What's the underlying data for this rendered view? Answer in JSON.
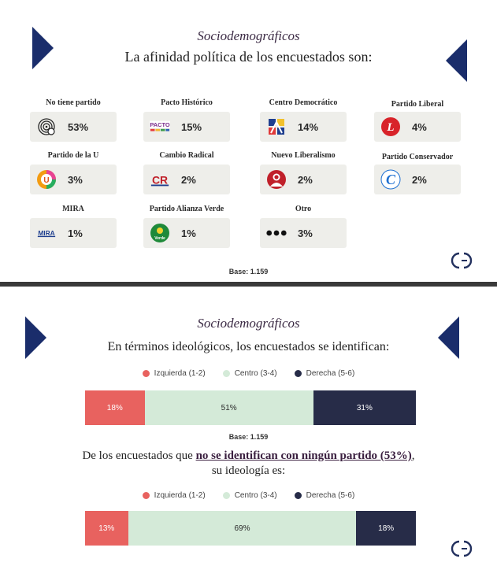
{
  "slide1": {
    "subtitle": "Sociodemográficos",
    "title": "La afinidad política de los encuestados son:",
    "parties": [
      {
        "name": "No tiene partido",
        "pct": "53%",
        "icon": "fingerprint-icon"
      },
      {
        "name": "Pacto Histórico",
        "pct": "15%",
        "icon": "pacto-historico-logo"
      },
      {
        "name": "Centro Democrático",
        "pct": "14%",
        "icon": "centro-democratico-logo"
      },
      {
        "name": "Partido Liberal",
        "pct": "4%",
        "icon": "partido-liberal-logo"
      },
      {
        "name": "Partido de la U",
        "pct": "3%",
        "icon": "partido-de-la-u-logo"
      },
      {
        "name": "Cambio Radical",
        "pct": "2%",
        "icon": "cambio-radical-logo"
      },
      {
        "name": "Nuevo Liberalismo",
        "pct": "2%",
        "icon": "nuevo-liberalismo-logo"
      },
      {
        "name": "Partido Conservador",
        "pct": "2%",
        "icon": "partido-conservador-logo"
      },
      {
        "name": "MIRA",
        "pct": "1%",
        "icon": "mira-logo"
      },
      {
        "name": "Partido Alianza Verde",
        "pct": "1%",
        "icon": "alianza-verde-logo"
      },
      {
        "name": "Otro",
        "pct": "3%",
        "icon": "three-dots-icon"
      }
    ],
    "logo_texts": {
      "pacto": "PACTO",
      "cambio": "CR",
      "mira": "MIRA",
      "verde": "Verde",
      "liberal": "L",
      "u": "U",
      "conservador": "C"
    },
    "base": "Base: 1.159"
  },
  "slide2": {
    "subtitle": "Sociodemográficos",
    "title": "En términos ideológicos, los encuestados se identifican:",
    "legend": [
      {
        "label": "Izquierda (1-2)",
        "color": "#e8625f"
      },
      {
        "label": "Centro (3-4)",
        "color": "#d4ead8"
      },
      {
        "label": "Derecha (5-6)",
        "color": "#272c48"
      }
    ],
    "bar1": [
      {
        "label": "18%",
        "value": 18
      },
      {
        "label": "51%",
        "value": 51
      },
      {
        "label": "31%",
        "value": 31
      }
    ],
    "base": "Base: 1.159",
    "statement_pre": "De los encuestados que ",
    "statement_emph": "no se identifican con ningún partido (53%)",
    "statement_post": ",",
    "statement_line2": "su ideología es:",
    "bar2": [
      {
        "label": "13%",
        "value": 13
      },
      {
        "label": "69%",
        "value": 69
      },
      {
        "label": "18%",
        "value": 18
      }
    ]
  },
  "colors": {
    "navy": "#1a2d6b",
    "izquierda": "#e8625f",
    "centro": "#d4ead8",
    "derecha": "#272c48",
    "brand": "#22305e"
  },
  "chart_data": [
    {
      "type": "bar",
      "title": "En términos ideológicos, los encuestados se identifican:",
      "categories": [
        "Izquierda (1-2)",
        "Centro (3-4)",
        "Derecha (5-6)"
      ],
      "values": [
        18,
        51,
        31
      ],
      "stacked": true,
      "unit": "%"
    },
    {
      "type": "bar",
      "title": "De los encuestados que no se identifican con ningún partido (53%), su ideología es:",
      "categories": [
        "Izquierda (1-2)",
        "Centro (3-4)",
        "Derecha (5-6)"
      ],
      "values": [
        13,
        69,
        18
      ],
      "stacked": true,
      "unit": "%"
    }
  ]
}
